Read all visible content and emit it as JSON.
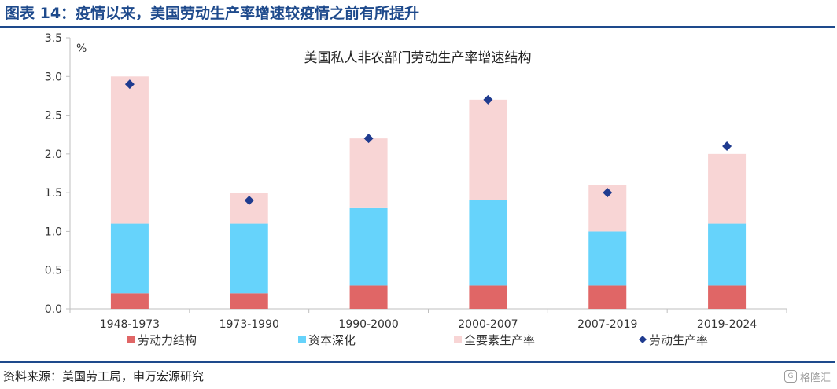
{
  "figure_title": "图表 14：疫情以来，美国劳动生产率增速较疫情之前有所提升",
  "source_note": "资料来源：美国劳工局，申万宏源研究",
  "watermark": "格隆汇",
  "colors": {
    "title_blue": "#1e4a8c",
    "labor_composition": "#e06666",
    "capital_deepening": "#66d3fb",
    "tfp": "#f8d5d5",
    "labor_productivity": "#1f3b8f",
    "axis": "#bfbfbf"
  },
  "chart_data": {
    "type": "bar",
    "stacked": true,
    "title": "美国私人非农部门劳动生产率增速结构",
    "xlabel": "",
    "ylabel": "%",
    "ylim": [
      0,
      3.5
    ],
    "yticks": [
      0.0,
      0.5,
      1.0,
      1.5,
      2.0,
      2.5,
      3.0,
      3.5
    ],
    "ytick_labels": [
      "0.0",
      "0.5",
      "1.0",
      "1.5",
      "2.0",
      "2.5",
      "3.0",
      "3.5"
    ],
    "grid": false,
    "legend_position": "bottom",
    "categories": [
      "1948-1973",
      "1973-1990",
      "1990-2000",
      "2000-2007",
      "2007-2019",
      "2019-2024"
    ],
    "series": [
      {
        "name": "劳动力结构",
        "kind": "bar",
        "values": [
          0.2,
          0.2,
          0.3,
          0.3,
          0.3,
          0.3
        ]
      },
      {
        "name": "资本深化",
        "kind": "bar",
        "values": [
          0.9,
          0.9,
          1.0,
          1.1,
          0.7,
          0.8
        ]
      },
      {
        "name": "全要素生产率",
        "kind": "bar",
        "values": [
          1.9,
          0.4,
          0.9,
          1.3,
          0.6,
          0.9
        ]
      },
      {
        "name": "劳动生产率",
        "kind": "marker",
        "marker": "diamond",
        "values": [
          2.9,
          1.4,
          2.2,
          2.7,
          1.5,
          2.1
        ]
      }
    ]
  }
}
